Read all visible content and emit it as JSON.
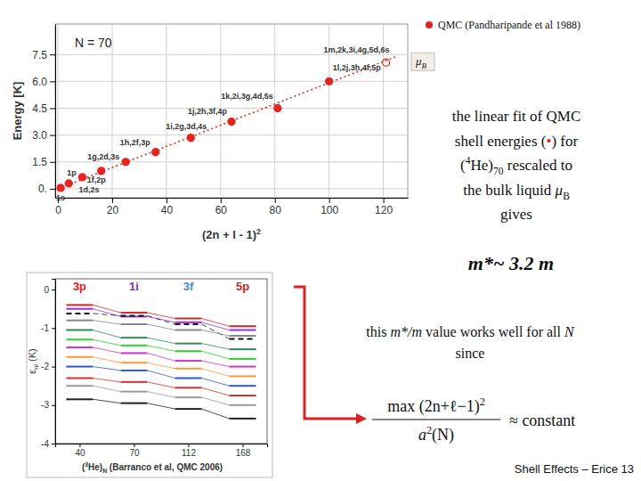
{
  "chart_data": [
    {
      "type": "scatter",
      "annotation": "N = 70",
      "x_label": [
        {
          "text": "(2n + l - 1)"
        },
        {
          "text": "2",
          "style": "sup"
        }
      ],
      "y_label": "Energy [K]",
      "xlim": [
        -1,
        129
      ],
      "ylim": [
        -0.5,
        9.2
      ],
      "xticks": [
        0,
        20,
        40,
        60,
        80,
        100,
        120
      ],
      "yticks": [
        {
          "value": 0,
          "label": "0."
        },
        1.5,
        {
          "value": 3,
          "label": "3.0"
        },
        4.5,
        {
          "value": 6,
          "label": "6.0"
        },
        7.5
      ],
      "grid": true,
      "series": [
        {
          "name": "QMC (Pandharipande et al 1988)",
          "color": "#e8231e",
          "marker": "circle",
          "x": [
            1,
            4,
            9,
            16,
            25,
            36,
            49,
            64,
            81,
            100
          ],
          "values": [
            0.05,
            0.3,
            0.65,
            1.0,
            1.5,
            2.05,
            2.85,
            3.75,
            4.5,
            6.0
          ],
          "labels": [
            "1s",
            "1p",
            "1d,2s",
            "1f,2p",
            "1g,2d,3s",
            "1h,2f,3p",
            "1i,2g,3d,4s",
            "1j,2h,3f,4p",
            "1k,2i,3g,4d,5s",
            "1l,2j,3h,4f,5p"
          ]
        },
        {
          "name": "μB",
          "color": "#e8231e",
          "marker": "open-circle",
          "x": [
            121
          ],
          "values": [
            7.05
          ],
          "labels": [
            "1m,2k,3i,4g,5d,6s"
          ]
        },
        {
          "type": "line",
          "color": "#e8231e",
          "line_style": "dotted",
          "x": [
            0,
            125
          ],
          "values": [
            0.0,
            7.4
          ]
        }
      ]
    },
    {
      "type": "line",
      "categories": [
        40,
        70,
        112,
        168
      ],
      "headers": [
        {
          "text": "3p",
          "color": "#e02020"
        },
        {
          "text": "1i",
          "color": "#7b2fd0"
        },
        {
          "text": "3f",
          "color": "#3b8ed8"
        },
        {
          "text": "5p",
          "color": "#e02020"
        }
      ],
      "x_label": [
        {
          "text": "("
        },
        {
          "text": "3",
          "style": "sup"
        },
        {
          "text": "He)"
        },
        {
          "text": "N",
          "style": "sub"
        },
        {
          "text": " (Barranco et al, QMC 2006)"
        }
      ],
      "y_label": [
        {
          "text": "ε"
        },
        {
          "text": "nl",
          "style": "sub"
        },
        {
          "text": " (K)"
        }
      ],
      "ylim": [
        -4,
        0.28
      ],
      "yticks": [
        0,
        -1,
        -2,
        -3,
        -4
      ],
      "series": [
        {
          "color": "#d62728",
          "values": [
            -0.4,
            -0.6,
            -0.75,
            -0.95
          ]
        },
        {
          "color": "#9b30d9",
          "values": [
            -0.5,
            -0.7,
            -0.85,
            -1.05
          ]
        },
        {
          "color": "#111111",
          "line_style": "dashed",
          "values": [
            -0.62,
            -0.68,
            -0.9,
            -1.28
          ]
        },
        {
          "color": "#888888",
          "values": [
            -0.8,
            -0.9,
            -1.05,
            -1.2
          ]
        },
        {
          "color": "#2e8b57",
          "values": [
            -1.05,
            -1.25,
            -1.4,
            -1.55
          ]
        },
        {
          "color": "#33cc33",
          "values": [
            -1.3,
            -1.45,
            -1.6,
            -1.8
          ]
        },
        {
          "color": "#cc33cc",
          "values": [
            -1.5,
            -1.65,
            -1.85,
            -2.0
          ]
        },
        {
          "color": "#ff9933",
          "values": [
            -1.75,
            -1.9,
            -2.05,
            -2.25
          ]
        },
        {
          "color": "#3355cc",
          "values": [
            -2.0,
            -2.1,
            -2.3,
            -2.5
          ]
        },
        {
          "color": "#cc3333",
          "values": [
            -2.3,
            -2.4,
            -2.55,
            -2.75
          ]
        },
        {
          "color": "#999999",
          "values": [
            -2.5,
            -2.65,
            -2.8,
            -3.0
          ]
        },
        {
          "color": "#222222",
          "values": [
            -2.85,
            -2.95,
            -3.1,
            -3.35
          ]
        }
      ]
    }
  ],
  "slide": {
    "statement_lines": [
      [
        {
          "text": "the linear fit of QMC"
        }
      ],
      [
        {
          "text": "shell energies ("
        },
        {
          "text": "•",
          "color": "#e8231e"
        },
        {
          "text": ") for"
        }
      ],
      [
        {
          "text": "("
        },
        {
          "text": "4",
          "style": "sup"
        },
        {
          "text": "He)"
        },
        {
          "text": "70",
          "style": "sub"
        },
        {
          "text": "  rescaled to"
        }
      ],
      [
        {
          "text": "the bulk liquid "
        },
        {
          "text": "μ",
          "style": "i"
        },
        {
          "text": "B",
          "style": "sub"
        }
      ],
      [
        {
          "text": "gives"
        }
      ]
    ],
    "result": [
      {
        "text": "m*~ 3.2 m",
        "style": "bi"
      }
    ],
    "note_lines": [
      [
        {
          "text": "this "
        },
        {
          "text": "m*/m",
          "style": "i"
        },
        {
          "text": "  value works well for all "
        },
        {
          "text": "N",
          "style": "i"
        }
      ],
      [
        {
          "text": "since"
        }
      ]
    ],
    "formula": {
      "numerator": [
        {
          "text": "max (2n+ℓ−1)"
        },
        {
          "text": "2",
          "style": "sup"
        }
      ],
      "denominator": [
        {
          "text": "a",
          "style": "i"
        },
        {
          "text": "2",
          "style": "sup"
        },
        {
          "text": "(N)"
        }
      ],
      "relation": "≈ constant"
    },
    "footer": "Shell Effects – Erice 13"
  }
}
